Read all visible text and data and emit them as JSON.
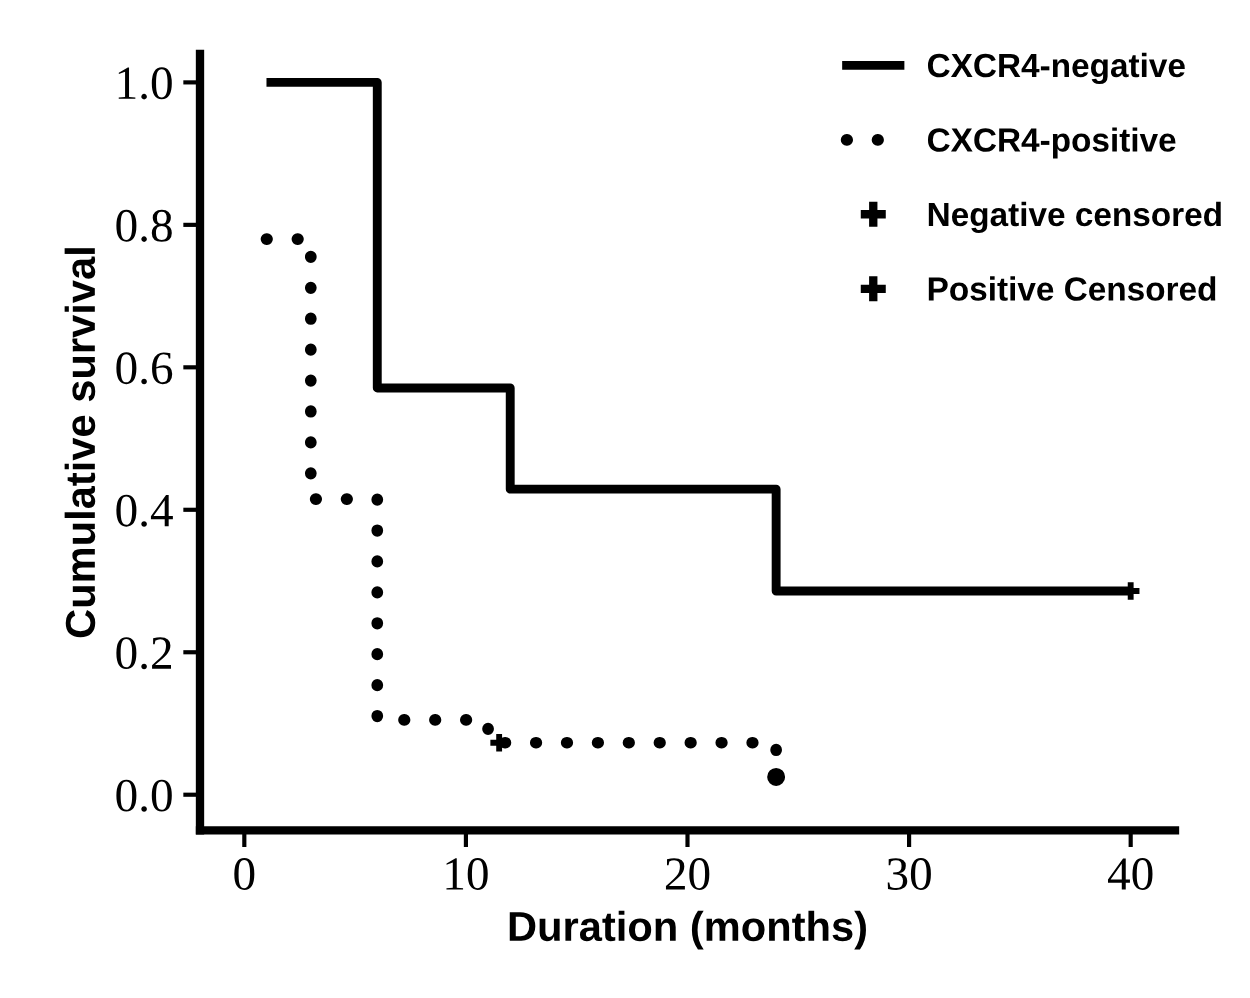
{
  "chart_data": {
    "type": "step",
    "xlabel": "Duration (months)",
    "ylabel": "Cumulative survival",
    "xlim": [
      -2,
      42
    ],
    "ylim": [
      -0.05,
      1.04
    ],
    "xticks": [
      0,
      10,
      20,
      30,
      40
    ],
    "yticks": [
      {
        "value": 0,
        "label": "0.0"
      },
      {
        "value": 0.2,
        "label": "0.2"
      },
      {
        "value": 0.4,
        "label": "0.4"
      },
      {
        "value": 0.6,
        "label": "0.6"
      },
      {
        "value": 0.8,
        "label": "0.8"
      },
      {
        "value": 1,
        "label": "1.0"
      }
    ],
    "grid": false,
    "legend": "top right",
    "series": [
      {
        "name": "CXCR4-negative",
        "color": "#000000",
        "line_style": "solid",
        "x": [
          1,
          6,
          12,
          24,
          40
        ],
        "values": [
          1.0,
          0.571,
          0.429,
          0.286,
          0.286
        ]
      },
      {
        "name": "CXCR4-positive",
        "color": "#000000",
        "line_style": "dotted",
        "x": [
          1,
          3,
          6,
          11,
          24,
          24
        ],
        "values": [
          0.78,
          0.415,
          0.105,
          0.073,
          0.073,
          0.025
        ]
      },
      {
        "name": "Negative censored",
        "type": "scatter",
        "marker": "cross",
        "color": "#000000",
        "x": [
          40
        ],
        "values": [
          0.286
        ]
      },
      {
        "name": "Positive Censored",
        "type": "scatter",
        "marker": "cross",
        "color": "#000000",
        "x": [
          11.5
        ],
        "values": [
          0.073
        ]
      }
    ]
  }
}
